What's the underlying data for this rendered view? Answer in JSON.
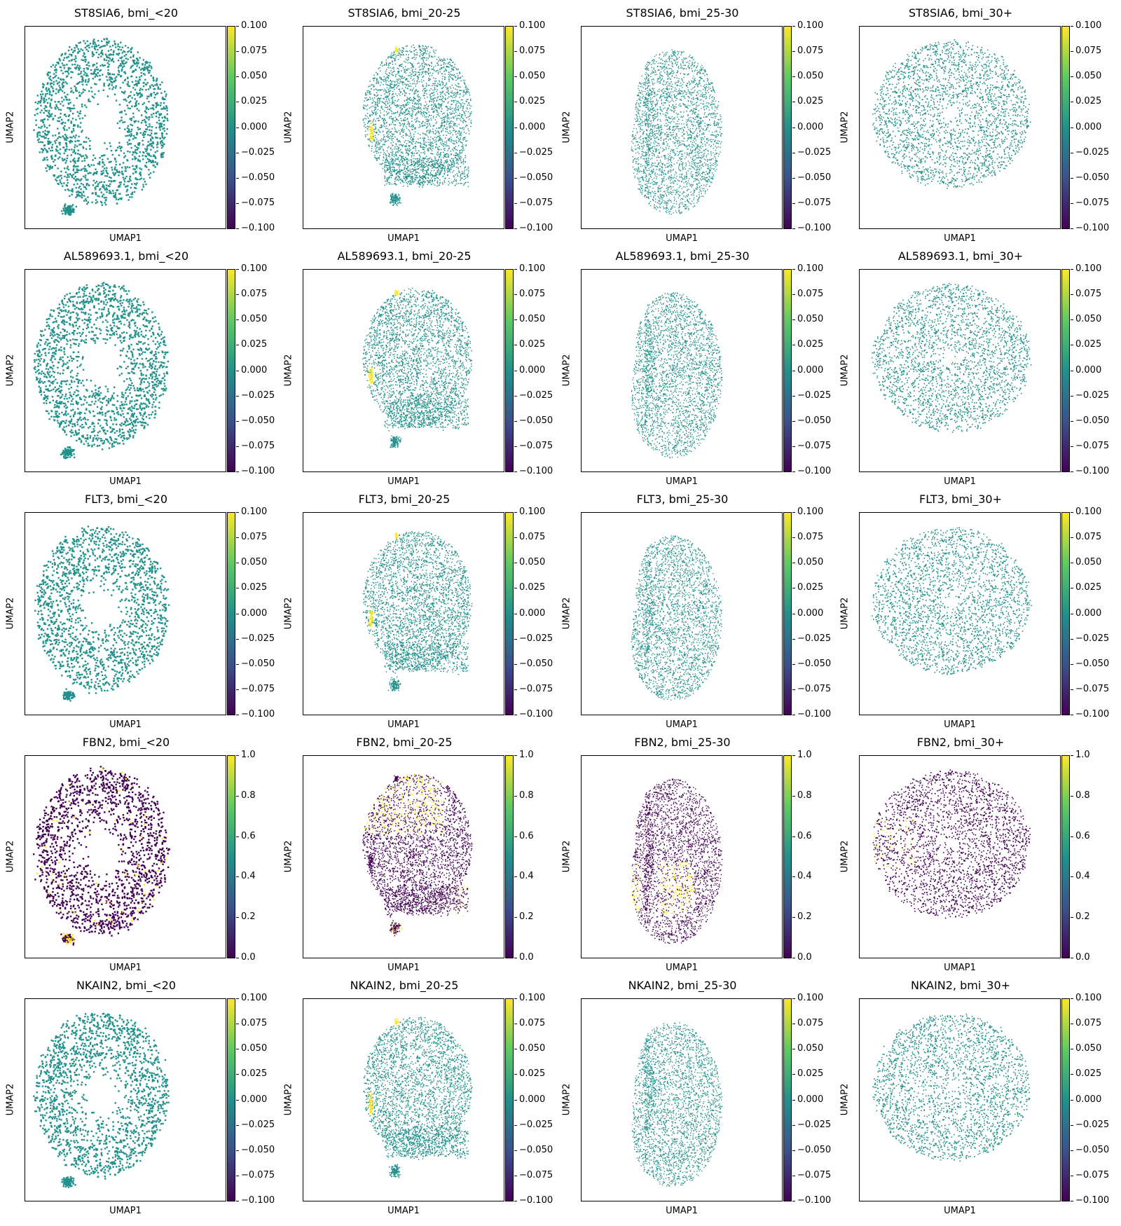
{
  "chart_data": [
    {
      "type": "scatter",
      "title": "ST8SIA6, bmi_<20",
      "xlabel": "UMAP1",
      "ylabel": "UMAP2",
      "colorbar_ticks": [
        "0.100",
        "0.075",
        "0.050",
        "0.025",
        "0.000",
        "−0.025",
        "−0.050",
        "−0.075",
        "−0.100"
      ],
      "colormap": "viridis",
      "point_color": "#21918c",
      "highlight_color": "#fde725",
      "shape": "ring"
    },
    {
      "type": "scatter",
      "title": "ST8SIA6, bmi_20-25",
      "xlabel": "UMAP1",
      "ylabel": "UMAP2",
      "colorbar_ticks": [
        "0.100",
        "0.075",
        "0.050",
        "0.025",
        "0.000",
        "−0.025",
        "−0.050",
        "−0.075",
        "−0.100"
      ],
      "colormap": "viridis",
      "point_color": "#21918c",
      "highlight_color": "#fde725",
      "shape": "blob"
    },
    {
      "type": "scatter",
      "title": "ST8SIA6, bmi_25-30",
      "xlabel": "UMAP1",
      "ylabel": "UMAP2",
      "colorbar_ticks": [
        "0.100",
        "0.075",
        "0.050",
        "0.025",
        "0.000",
        "−0.025",
        "−0.050",
        "−0.075",
        "−0.100"
      ],
      "colormap": "viridis",
      "point_color": "#21918c",
      "highlight_color": "#fde725",
      "shape": "bean"
    },
    {
      "type": "scatter",
      "title": "ST8SIA6, bmi_30+",
      "xlabel": "UMAP1",
      "ylabel": "UMAP2",
      "colorbar_ticks": [
        "0.100",
        "0.075",
        "0.050",
        "0.025",
        "0.000",
        "−0.025",
        "−0.050",
        "−0.075",
        "−0.100"
      ],
      "colormap": "viridis",
      "point_color": "#21918c",
      "highlight_color": "#fde725",
      "shape": "disc"
    },
    {
      "type": "scatter",
      "title": "AL589693.1, bmi_<20",
      "xlabel": "UMAP1",
      "ylabel": "UMAP2",
      "colorbar_ticks": [
        "0.100",
        "0.075",
        "0.050",
        "0.025",
        "0.000",
        "−0.025",
        "−0.050",
        "−0.075",
        "−0.100"
      ],
      "colormap": "viridis",
      "point_color": "#21918c",
      "highlight_color": "#fde725",
      "shape": "ring"
    },
    {
      "type": "scatter",
      "title": "AL589693.1, bmi_20-25",
      "xlabel": "UMAP1",
      "ylabel": "UMAP2",
      "colorbar_ticks": [
        "0.100",
        "0.075",
        "0.050",
        "0.025",
        "0.000",
        "−0.025",
        "−0.050",
        "−0.075",
        "−0.100"
      ],
      "colormap": "viridis",
      "point_color": "#21918c",
      "highlight_color": "#fde725",
      "shape": "blob"
    },
    {
      "type": "scatter",
      "title": "AL589693.1, bmi_25-30",
      "xlabel": "UMAP1",
      "ylabel": "UMAP2",
      "colorbar_ticks": [
        "0.100",
        "0.075",
        "0.050",
        "0.025",
        "0.000",
        "−0.025",
        "−0.050",
        "−0.075",
        "−0.100"
      ],
      "colormap": "viridis",
      "point_color": "#21918c",
      "highlight_color": "#fde725",
      "shape": "bean"
    },
    {
      "type": "scatter",
      "title": "AL589693.1, bmi_30+",
      "xlabel": "UMAP1",
      "ylabel": "UMAP2",
      "colorbar_ticks": [
        "0.100",
        "0.075",
        "0.050",
        "0.025",
        "0.000",
        "−0.025",
        "−0.050",
        "−0.075",
        "−0.100"
      ],
      "colormap": "viridis",
      "point_color": "#21918c",
      "highlight_color": "#fde725",
      "shape": "disc"
    },
    {
      "type": "scatter",
      "title": "FLT3, bmi_<20",
      "xlabel": "UMAP1",
      "ylabel": "UMAP2",
      "colorbar_ticks": [
        "0.100",
        "0.075",
        "0.050",
        "0.025",
        "0.000",
        "−0.025",
        "−0.050",
        "−0.075",
        "−0.100"
      ],
      "colormap": "viridis",
      "point_color": "#21918c",
      "highlight_color": "#fde725",
      "shape": "ring"
    },
    {
      "type": "scatter",
      "title": "FLT3, bmi_20-25",
      "xlabel": "UMAP1",
      "ylabel": "UMAP2",
      "colorbar_ticks": [
        "0.100",
        "0.075",
        "0.050",
        "0.025",
        "0.000",
        "−0.025",
        "−0.050",
        "−0.075",
        "−0.100"
      ],
      "colormap": "viridis",
      "point_color": "#21918c",
      "highlight_color": "#fde725",
      "shape": "blob"
    },
    {
      "type": "scatter",
      "title": "FLT3, bmi_25-30",
      "xlabel": "UMAP1",
      "ylabel": "UMAP2",
      "colorbar_ticks": [
        "0.100",
        "0.075",
        "0.050",
        "0.025",
        "0.000",
        "−0.025",
        "−0.050",
        "−0.075",
        "−0.100"
      ],
      "colormap": "viridis",
      "point_color": "#21918c",
      "highlight_color": "#fde725",
      "shape": "bean"
    },
    {
      "type": "scatter",
      "title": "FLT3, bmi_30+",
      "xlabel": "UMAP1",
      "ylabel": "UMAP2",
      "colorbar_ticks": [
        "0.100",
        "0.075",
        "0.050",
        "0.025",
        "0.000",
        "−0.025",
        "−0.050",
        "−0.075",
        "−0.100"
      ],
      "colormap": "viridis",
      "point_color": "#21918c",
      "highlight_color": "#fde725",
      "shape": "disc"
    },
    {
      "type": "scatter",
      "title": "FBN2, bmi_<20",
      "xlabel": "UMAP1",
      "ylabel": "UMAP2",
      "colorbar_ticks": [
        "1.0",
        "0.8",
        "0.6",
        "0.4",
        "0.2",
        "0.0"
      ],
      "colormap": "viridis",
      "point_color": "#440154",
      "highlight_color": "#fde725",
      "shape": "ring"
    },
    {
      "type": "scatter",
      "title": "FBN2, bmi_20-25",
      "xlabel": "UMAP1",
      "ylabel": "UMAP2",
      "colorbar_ticks": [
        "1.0",
        "0.8",
        "0.6",
        "0.4",
        "0.2",
        "0.0"
      ],
      "colormap": "viridis",
      "point_color": "#440154",
      "highlight_color": "#fde725",
      "shape": "blob"
    },
    {
      "type": "scatter",
      "title": "FBN2, bmi_25-30",
      "xlabel": "UMAP1",
      "ylabel": "UMAP2",
      "colorbar_ticks": [
        "1.0",
        "0.8",
        "0.6",
        "0.4",
        "0.2",
        "0.0"
      ],
      "colormap": "viridis",
      "point_color": "#440154",
      "highlight_color": "#fde725",
      "shape": "bean"
    },
    {
      "type": "scatter",
      "title": "FBN2, bmi_30+",
      "xlabel": "UMAP1",
      "ylabel": "UMAP2",
      "colorbar_ticks": [
        "1.0",
        "0.8",
        "0.6",
        "0.4",
        "0.2",
        "0.0"
      ],
      "colormap": "viridis",
      "point_color": "#440154",
      "highlight_color": "#fde725",
      "shape": "disc"
    },
    {
      "type": "scatter",
      "title": "NKAIN2, bmi_<20",
      "xlabel": "UMAP1",
      "ylabel": "UMAP2",
      "colorbar_ticks": [
        "0.100",
        "0.075",
        "0.050",
        "0.025",
        "0.000",
        "−0.025",
        "−0.050",
        "−0.075",
        "−0.100"
      ],
      "colormap": "viridis",
      "point_color": "#21918c",
      "highlight_color": "#fde725",
      "shape": "ring"
    },
    {
      "type": "scatter",
      "title": "NKAIN2, bmi_20-25",
      "xlabel": "UMAP1",
      "ylabel": "UMAP2",
      "colorbar_ticks": [
        "0.100",
        "0.075",
        "0.050",
        "0.025",
        "0.000",
        "−0.025",
        "−0.050",
        "−0.075",
        "−0.100"
      ],
      "colormap": "viridis",
      "point_color": "#21918c",
      "highlight_color": "#fde725",
      "shape": "blob"
    },
    {
      "type": "scatter",
      "title": "NKAIN2, bmi_25-30",
      "xlabel": "UMAP1",
      "ylabel": "UMAP2",
      "colorbar_ticks": [
        "0.100",
        "0.075",
        "0.050",
        "0.025",
        "0.000",
        "−0.025",
        "−0.050",
        "−0.075",
        "−0.100"
      ],
      "colormap": "viridis",
      "point_color": "#21918c",
      "highlight_color": "#fde725",
      "shape": "bean"
    },
    {
      "type": "scatter",
      "title": "NKAIN2, bmi_30+",
      "xlabel": "UMAP1",
      "ylabel": "UMAP2",
      "colorbar_ticks": [
        "0.100",
        "0.075",
        "0.050",
        "0.025",
        "0.000",
        "−0.025",
        "−0.050",
        "−0.075",
        "−0.100"
      ],
      "colormap": "viridis",
      "point_color": "#21918c",
      "highlight_color": "#fde725",
      "shape": "disc"
    }
  ]
}
